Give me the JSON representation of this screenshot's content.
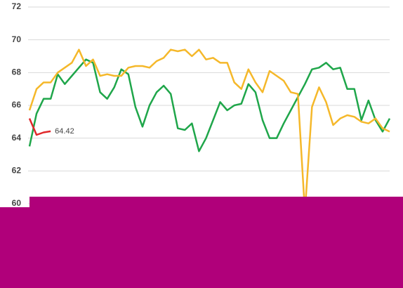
{
  "chart_data": {
    "type": "line",
    "categories": [
      null,
      null,
      null,
      null,
      null,
      null,
      null,
      null,
      null,
      null,
      null,
      null,
      null,
      null,
      null,
      null,
      null,
      null,
      null,
      null,
      null,
      null,
      null,
      null,
      null,
      null,
      null,
      null,
      null,
      null,
      null,
      null,
      null,
      null,
      null,
      null,
      null,
      null,
      null,
      null,
      null,
      null,
      null,
      null,
      null,
      null,
      null,
      null,
      null,
      null,
      null,
      null
    ],
    "series": [
      {
        "color": "#1fa64a",
        "values": [
          63.5,
          65.5,
          66.4,
          66.4,
          67.9,
          67.3,
          67.8,
          68.3,
          68.8,
          68.6,
          66.8,
          66.4,
          67.1,
          68.2,
          67.9,
          65.9,
          64.7,
          66.0,
          66.8,
          67.2,
          66.7,
          64.6,
          64.5,
          64.9,
          63.2,
          64.0,
          65.1,
          66.2,
          65.7,
          66.0,
          66.1,
          67.3,
          66.8,
          65.1,
          64.0,
          64.0,
          64.9,
          65.7,
          66.5,
          67.3,
          68.2,
          68.3,
          68.6,
          68.2,
          68.3,
          67.0,
          67.0,
          65.1,
          66.3,
          65.1,
          64.4,
          65.2
        ]
      },
      {
        "color": "#f5b82a",
        "values": [
          65.7,
          67.0,
          67.4,
          67.4,
          68.0,
          68.3,
          68.6,
          69.4,
          68.4,
          68.8,
          67.8,
          67.9,
          67.8,
          67.8,
          68.3,
          68.4,
          68.4,
          68.3,
          68.7,
          68.9,
          69.4,
          69.3,
          69.4,
          69.0,
          69.4,
          68.8,
          68.9,
          68.6,
          68.6,
          67.4,
          67.0,
          68.2,
          67.4,
          66.8,
          68.1,
          67.8,
          67.5,
          66.8,
          66.7,
          59.5,
          65.9,
          67.1,
          66.2,
          64.8,
          65.2,
          65.4,
          65.3,
          65.0,
          64.9,
          65.2,
          64.6,
          64.4
        ]
      },
      {
        "color": "#e0282a",
        "values": [
          65.2,
          64.2,
          64.35,
          64.42,
          null,
          null,
          null,
          null,
          null,
          null,
          null,
          null,
          null,
          null,
          null,
          null,
          null,
          null,
          null,
          null,
          null,
          null,
          null,
          null,
          null,
          null,
          null,
          null,
          null,
          null,
          null,
          null,
          null,
          null,
          null,
          null,
          null,
          null,
          null,
          null,
          null,
          null,
          null,
          null,
          null,
          null,
          null,
          null,
          null,
          null,
          null,
          null
        ]
      }
    ],
    "ylim": [
      60,
      72
    ],
    "yticks": [
      60,
      62,
      64,
      66,
      68,
      70,
      72
    ],
    "grid": true
  }
}
